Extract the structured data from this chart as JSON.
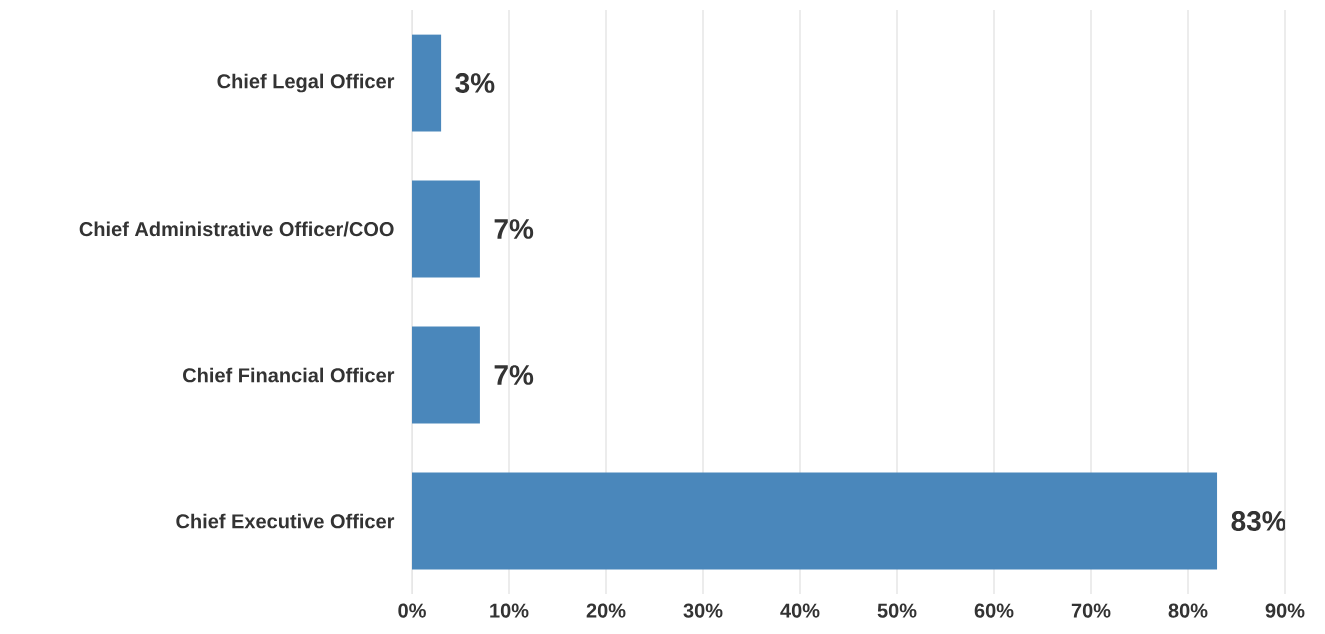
{
  "chart_data": {
    "type": "bar",
    "orientation": "horizontal",
    "categories": [
      "Chief Legal Officer",
      "Chief Administrative Officer/COO",
      "Chief Financial Officer",
      "Chief Executive Officer"
    ],
    "values": [
      3,
      7,
      7,
      83
    ],
    "value_labels": [
      "3%",
      "7%",
      "7%",
      "83%"
    ],
    "color": "#4a87bb",
    "xlim": [
      0,
      90
    ],
    "xticks": [
      {
        "value": 0,
        "label": "0%"
      },
      {
        "value": 10,
        "label": "10%"
      },
      {
        "value": 20,
        "label": "20%"
      },
      {
        "value": 30,
        "label": "30%"
      },
      {
        "value": 40,
        "label": "40%"
      },
      {
        "value": 50,
        "label": "50%"
      },
      {
        "value": 60,
        "label": "60%"
      },
      {
        "value": 70,
        "label": "70%"
      },
      {
        "value": 80,
        "label": "80%"
      },
      {
        "value": 90,
        "label": "90%"
      }
    ],
    "grid": "x"
  }
}
